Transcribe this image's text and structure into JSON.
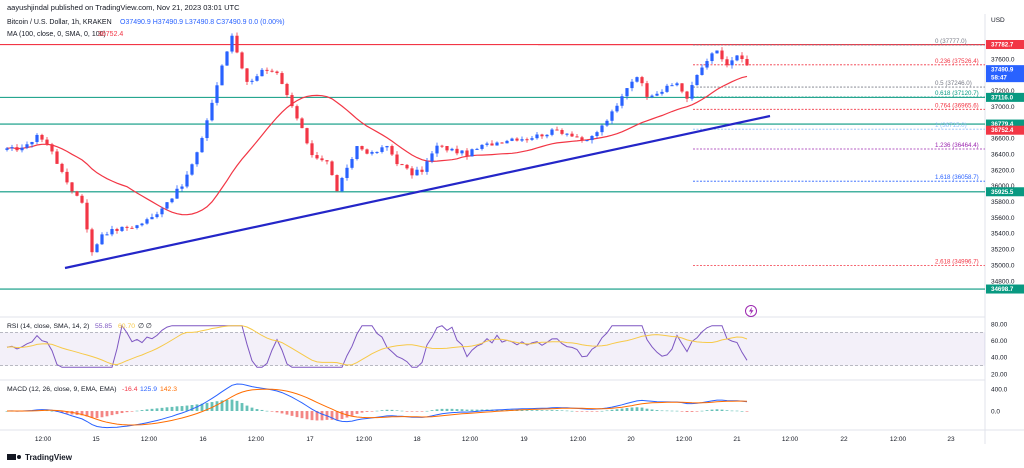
{
  "header": {
    "published": "aayushjindal published on TradingView.com, Nov 21, 2023 03:01 UTC",
    "symbol": "Bitcoin / U.S. Dollar, 1h, KRAKEN",
    "ohlc": "O37490.9 H37490.9 L37490.8 C37490.9 0.0 (0.00%)",
    "ma_label": "MA (100, close, 0, SMA, 0, 100)",
    "ma_value": "36752.4",
    "currency": "USD"
  },
  "price_tag": {
    "price": "37490.9",
    "countdown": "58:47"
  },
  "fib_levels": [
    {
      "label": "0 (37777.0)",
      "value": 37777.0,
      "color": "#787b86"
    },
    {
      "label": "0.236 (37526.4)",
      "value": 37526.4,
      "color": "#f23645"
    },
    {
      "label": "0.5 (37246.0)",
      "value": 37246.0,
      "color": "#787b86"
    },
    {
      "label": "0.618 (37120.7)",
      "value": 37120.7,
      "color": "#089981"
    },
    {
      "label": "0.764 (36965.6)",
      "value": 36965.6,
      "color": "#f23645"
    },
    {
      "label": "1 (36715.0)",
      "value": 36715.0,
      "color": "#90bff9"
    },
    {
      "label": "1.236 (36464.4)",
      "value": 36464.4,
      "color": "#9c27b0"
    },
    {
      "label": "1.618 (36058.7)",
      "value": 36058.7,
      "color": "#2962ff"
    },
    {
      "label": "2.618 (34996.7)",
      "value": 34996.7,
      "color": "#f23645"
    }
  ],
  "hlines": [
    {
      "value": 37782.7,
      "label": "37782.7",
      "color": "#f23645"
    },
    {
      "value": 37116.0,
      "label": "37116.0",
      "color": "#089981"
    },
    {
      "value": 36779.4,
      "label": "36779.4",
      "color": "#089981"
    },
    {
      "value": 35925.5,
      "label": "35925.5",
      "color": "#089981"
    },
    {
      "value": 34698.7,
      "label": "34698.7",
      "color": "#089981"
    }
  ],
  "ma_tag": "36752.4",
  "rsi": {
    "label": "RSI (14, close, SMA, 14, 2)",
    "value": "55.85",
    "ma_value": "60.70",
    "extra": "∅ ∅",
    "ticks": [
      "80.00",
      "60.00",
      "40.00",
      "20.00"
    ],
    "tick_values": [
      80,
      60,
      40,
      20
    ]
  },
  "macd": {
    "label": "MACD (12, 26, close, 9, EMA, EMA)",
    "hist_value": "-16.4",
    "macd_value": "125.9",
    "signal_value": "142.3",
    "ticks": [
      "400.0",
      "0.0"
    ],
    "tick_values": [
      400,
      0
    ]
  },
  "x_ticks": [
    "12:00",
    "15",
    "12:00",
    "16",
    "12:00",
    "17",
    "12:00",
    "18",
    "12:00",
    "19",
    "12:00",
    "20",
    "12:00",
    "21",
    "12:00",
    "22",
    "12:00",
    "23"
  ],
  "branding": "TradingView",
  "colors": {
    "up": "#2962ff",
    "down": "#f23645",
    "ma": "#f23645",
    "trendline": "#2426c8",
    "rsi": "#7e57c2",
    "macd": "#2962ff",
    "signal": "#ff6d00"
  },
  "chart_data": {
    "type": "candlestick",
    "ylim": [
      34600,
      38000
    ],
    "price_ticks": [
      37600,
      37400,
      37200,
      37000,
      36600,
      36400,
      36200,
      36000,
      35800,
      35600,
      35400,
      35200,
      35000,
      34800
    ],
    "anchors": [
      [
        0,
        36450
      ],
      [
        4,
        36500
      ],
      [
        6,
        36650
      ],
      [
        9,
        36450
      ],
      [
        11,
        36150
      ],
      [
        13,
        35950
      ],
      [
        15,
        35800
      ],
      [
        17,
        35150
      ],
      [
        19,
        35400
      ],
      [
        22,
        35450
      ],
      [
        26,
        35500
      ],
      [
        29,
        35600
      ],
      [
        32,
        35800
      ],
      [
        35,
        36000
      ],
      [
        38,
        36400
      ],
      [
        41,
        37050
      ],
      [
        43,
        37500
      ],
      [
        45,
        37900
      ],
      [
        48,
        37300
      ],
      [
        51,
        37450
      ],
      [
        54,
        37400
      ],
      [
        57,
        37000
      ],
      [
        59,
        36700
      ],
      [
        61,
        36400
      ],
      [
        64,
        36300
      ],
      [
        66,
        35950
      ],
      [
        68,
        36200
      ],
      [
        70,
        36500
      ],
      [
        73,
        36400
      ],
      [
        76,
        36500
      ],
      [
        78,
        36300
      ],
      [
        81,
        36150
      ],
      [
        83,
        36200
      ],
      [
        86,
        36500
      ],
      [
        89,
        36450
      ],
      [
        92,
        36400
      ],
      [
        95,
        36500
      ],
      [
        98,
        36550
      ],
      [
        101,
        36600
      ],
      [
        104,
        36600
      ],
      [
        107,
        36650
      ],
      [
        110,
        36700
      ],
      [
        113,
        36650
      ],
      [
        116,
        36550
      ],
      [
        119,
        36750
      ],
      [
        122,
        37000
      ],
      [
        124,
        37250
      ],
      [
        126,
        37400
      ],
      [
        128,
        37150
      ],
      [
        131,
        37200
      ],
      [
        134,
        37300
      ],
      [
        136,
        37100
      ],
      [
        138,
        37400
      ],
      [
        140,
        37600
      ],
      [
        142,
        37700
      ],
      [
        144,
        37500
      ],
      [
        146,
        37650
      ],
      [
        148,
        37500
      ]
    ]
  }
}
